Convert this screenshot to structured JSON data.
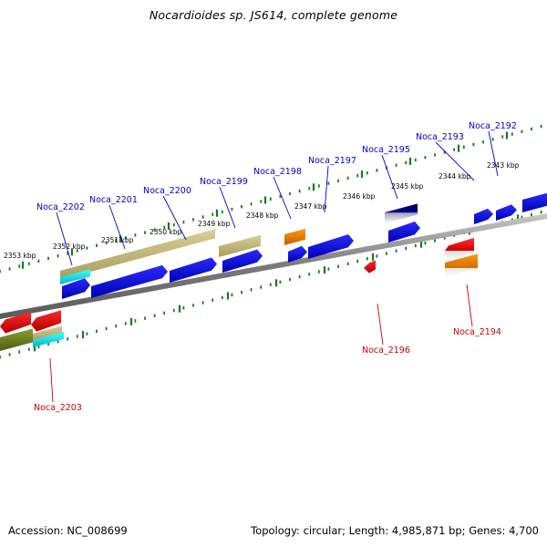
{
  "title": "Nocardioides sp. JS614, complete genome",
  "footer": {
    "accession": "Accession: NC_008699",
    "summary": "Topology: circular; Length: 4,985,871 bp; Genes: 4,700"
  },
  "colors": {
    "forward_label": "#0000c8",
    "reverse_label": "#c80000",
    "backbone": "#808080",
    "ticks": "#1a7a1a",
    "gene_blue": "#0000ee",
    "gene_red": "#ee0000",
    "gene_orange": "#ee8800",
    "gene_khaki": "#c8bd80",
    "gene_olive": "#6b7d1f",
    "gene_cyan": "#00e6e6",
    "gene_navy": "#000080"
  },
  "scale_labels": [
    "2353 kbp",
    "2352 kbp",
    "2351 kbp",
    "2350 kbp",
    "2349 kbp",
    "2348 kbp",
    "2347 kbp",
    "2346 kbp",
    "2345 kbp",
    "2344 kbp",
    "2343 kbp"
  ],
  "forward_labels": [
    "Noca_2202",
    "Noca_2201",
    "Noca_2200",
    "Noca_2199",
    "Noca_2198",
    "Noca_2197",
    "Noca_2195",
    "Noca_2193",
    "Noca_2192"
  ],
  "reverse_labels": [
    "Noca_2203",
    "Noca_2196",
    "Noca_2194"
  ]
}
